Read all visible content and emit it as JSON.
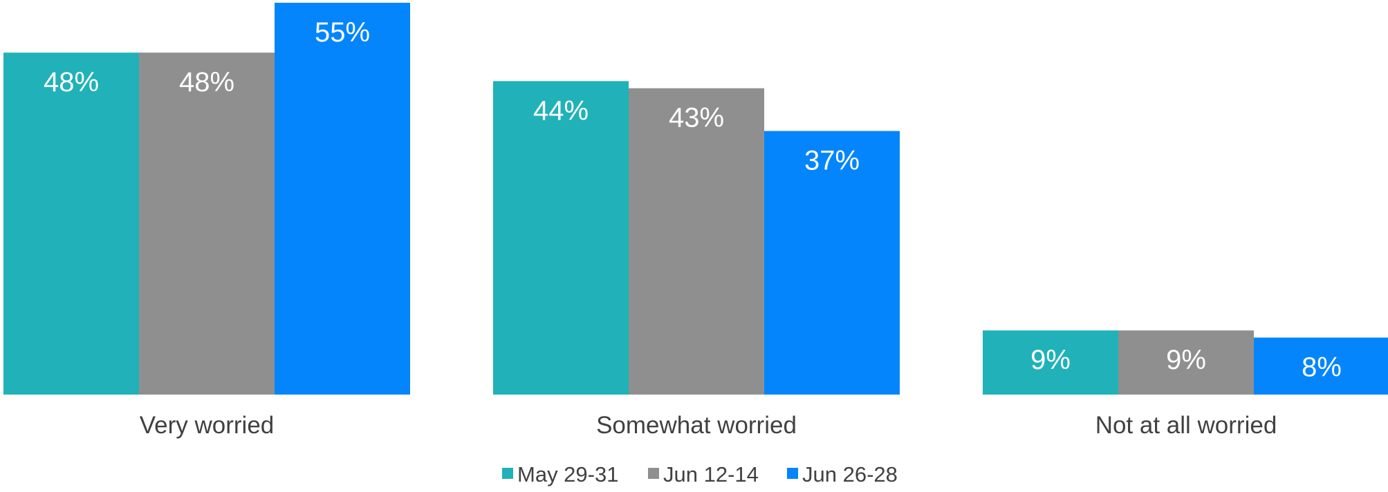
{
  "chart_data": {
    "type": "bar",
    "categories": [
      "Very worried",
      "Somewhat worried",
      "Not at all worried"
    ],
    "series": [
      {
        "name": "May 29-31",
        "color": "#20B2B8",
        "values": [
          48,
          44,
          9
        ],
        "labels": [
          "48%",
          "44%",
          "9%"
        ]
      },
      {
        "name": "Jun 12-14",
        "color": "#8F8F8F",
        "values": [
          48,
          43,
          9
        ],
        "labels": [
          "48%",
          "43%",
          "9%"
        ]
      },
      {
        "name": "Jun 26-28",
        "color": "#0485FC",
        "values": [
          55,
          37,
          8
        ],
        "labels": [
          "55%",
          "37%",
          "8%"
        ]
      }
    ],
    "ylim": [
      0,
      55
    ],
    "grid": false,
    "legend_position": "bottom-center",
    "label_color": "#FFFFFF",
    "text_color": "#404040"
  }
}
